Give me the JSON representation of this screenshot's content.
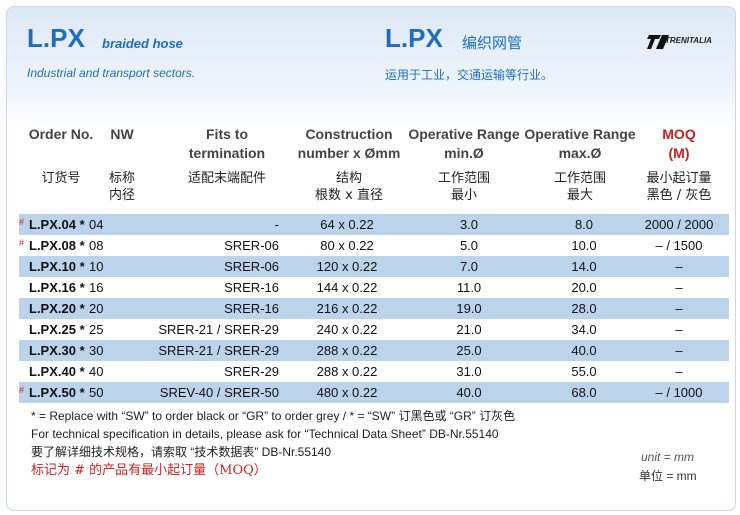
{
  "header": {
    "title_en": "L.PX",
    "subtitle_en": "braided hose",
    "sector_en": "Industrial and transport sectors.",
    "title_cn": "L.PX",
    "subtitle_cn": "编织网管",
    "sector_cn": "运用于工业，交通运输等行业。",
    "logo_text": "TRENITALIA"
  },
  "columns": {
    "order_en": "Order No.",
    "order_cn": "订货号",
    "nw_en": "NW",
    "nw_cn_1": "标称",
    "nw_cn_2": "内径",
    "fits_en_1": "Fits to",
    "fits_en_2": "termination",
    "fits_cn": "适配末端配件",
    "cons_en_1": "Construction",
    "cons_en_2": "number x Ømm",
    "cons_cn_1": "结构",
    "cons_cn_2": "根数 x 直径",
    "min_en_1": "Operative Range",
    "min_en_2": "min.Ø",
    "min_cn_1": "工作范围",
    "min_cn_2": "最小",
    "max_en_1": "Operative Range",
    "max_en_2": "max.Ø",
    "max_cn_1": "工作范围",
    "max_cn_2": "最大",
    "moq_en_1": "MOQ",
    "moq_en_2": "(M)",
    "moq_cn_1": "最小起订量",
    "moq_cn_2": "黑色 / 灰色"
  },
  "rows": [
    {
      "mark": "#",
      "order": "L.PX.04 *",
      "nw": "04",
      "fits": "-",
      "cons": "64 x 0.22",
      "min": "3.0",
      "max": "8.0",
      "moq": "2000 / 2000",
      "alt": true
    },
    {
      "mark": "#",
      "order": "L.PX.08 *",
      "nw": "08",
      "fits": "SRER-06",
      "cons": "80 x 0.22",
      "min": "5.0",
      "max": "10.0",
      "moq": "–  / 1500",
      "alt": false
    },
    {
      "mark": "",
      "order": "L.PX.10 *",
      "nw": "10",
      "fits": "SRER-06",
      "cons": "120 x 0.22",
      "min": "7.0",
      "max": "14.0",
      "moq": "–",
      "alt": true
    },
    {
      "mark": "",
      "order": "L.PX.16 *",
      "nw": "16",
      "fits": "SRER-16",
      "cons": "144 x 0.22",
      "min": "11.0",
      "max": "20.0",
      "moq": "–",
      "alt": false
    },
    {
      "mark": "",
      "order": "L.PX.20 *",
      "nw": "20",
      "fits": "SRER-16",
      "cons": "216 x 0.22",
      "min": "19.0",
      "max": "28.0",
      "moq": "–",
      "alt": true
    },
    {
      "mark": "",
      "order": "L.PX.25 *",
      "nw": "25",
      "fits": "SRER-21 / SRER-29",
      "cons": "240 x 0.22",
      "min": "21.0",
      "max": "34.0",
      "moq": "–",
      "alt": false
    },
    {
      "mark": "",
      "order": "L.PX.30 *",
      "nw": "30",
      "fits": "SRER-21 / SRER-29",
      "cons": "288 x 0.22",
      "min": "25.0",
      "max": "40.0",
      "moq": "–",
      "alt": true
    },
    {
      "mark": "",
      "order": "L.PX.40 *",
      "nw": "40",
      "fits": "SRER-29",
      "cons": "288 x 0.22",
      "min": "31.0",
      "max": "55.0",
      "moq": "–",
      "alt": false
    },
    {
      "mark": "#",
      "order": "L.PX.50 *",
      "nw": "50",
      "fits": "SREV-40 / SRER-50",
      "cons": "480 x 0.22",
      "min": "40.0",
      "max": "68.0",
      "moq": "–  / 1000",
      "alt": true
    }
  ],
  "notes": {
    "line1": "* = Replace with “SW” to order black or “GR” to order grey / * = “SW” 订黑色或 “GR” 订灰色",
    "line2": "For technical specification in details,  please ask for “Technical Data Sheet” DB-Nr.55140",
    "line3": "要了解详细技术规格，请索取 “技术数据表” DB-Nr.55140",
    "line4": "标记为  #  的产品有最小起订量（MOQ）",
    "unit_en": "unit = mm",
    "unit_cn": "单位 = mm"
  },
  "colors": {
    "brand_blue": "#1f6dc0",
    "row_alt": "#bcd3ec",
    "accent_red": "#cc1f1f"
  }
}
